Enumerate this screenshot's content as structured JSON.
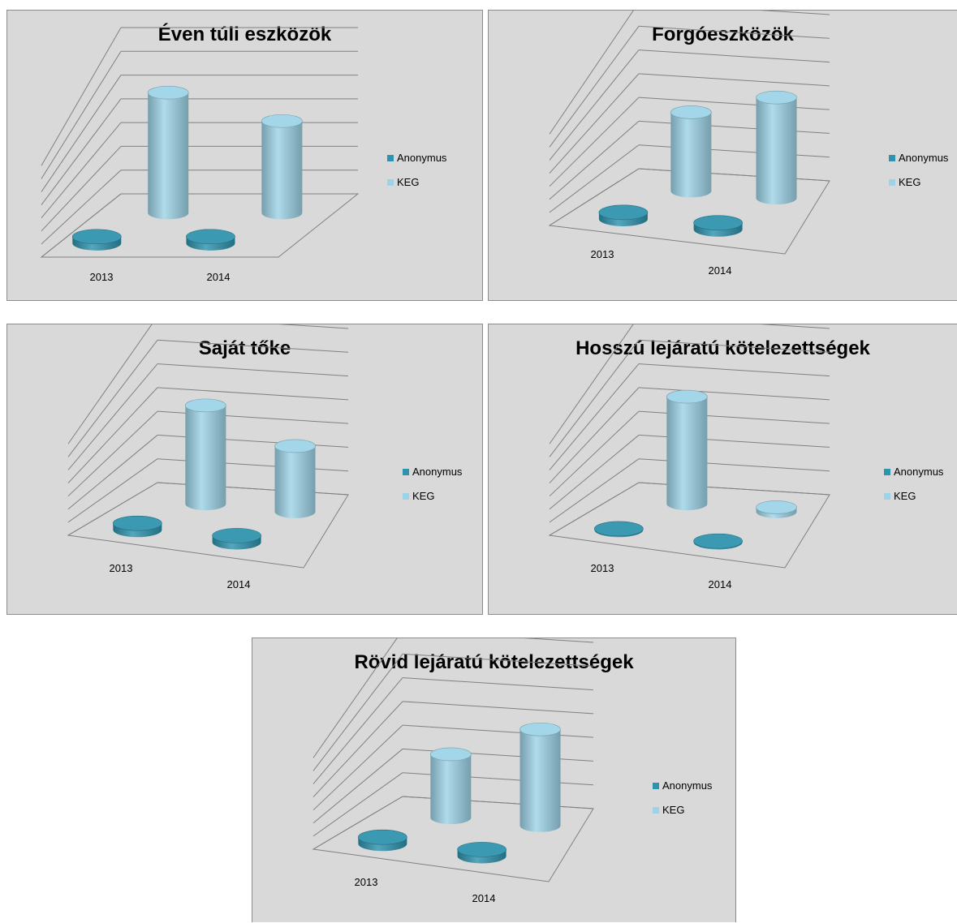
{
  "colors": {
    "anonymus": "#2f93ad",
    "keg": "#9dd3e6",
    "panel_bg": "#d9d9d9",
    "grid": "#808080"
  },
  "legend": [
    {
      "label": "Anonymus",
      "color": "#2f93ad"
    },
    {
      "label": "KEG",
      "color": "#9dd3e6"
    }
  ],
  "chart_data": [
    {
      "type": "bar",
      "title": "Éven túli eszközök",
      "categories": [
        "2013",
        "2014"
      ],
      "series": [
        {
          "name": "Anonymus",
          "values": [
            0.3,
            0.3
          ]
        },
        {
          "name": "KEG",
          "values": [
            5.5,
            4.2
          ]
        }
      ],
      "ylim": [
        0,
        7
      ],
      "grid": true,
      "legend_position": "right"
    },
    {
      "type": "bar",
      "title": "Forgóeszközök",
      "categories": [
        "2013",
        "2014"
      ],
      "series": [
        {
          "name": "Anonymus",
          "values": [
            0.3,
            0.3
          ]
        },
        {
          "name": "KEG",
          "values": [
            3.6,
            4.6
          ]
        }
      ],
      "ylim": [
        0,
        7
      ],
      "grid": true,
      "legend_position": "right"
    },
    {
      "type": "bar",
      "title": "Saját tőke",
      "categories": [
        "2013",
        "2014"
      ],
      "series": [
        {
          "name": "Anonymus",
          "values": [
            0.3,
            0.3
          ]
        },
        {
          "name": "KEG",
          "values": [
            4.5,
            3.0
          ]
        }
      ],
      "ylim": [
        0,
        7
      ],
      "grid": true,
      "legend_position": "right"
    },
    {
      "type": "bar",
      "title": "Hosszú lejáratú kötelezettségek",
      "categories": [
        "2013",
        "2014"
      ],
      "series": [
        {
          "name": "Anonymus",
          "values": [
            0.05,
            0.05
          ]
        },
        {
          "name": "KEG",
          "values": [
            4.9,
            0.2
          ]
        }
      ],
      "ylim": [
        0,
        7
      ],
      "grid": true,
      "legend_position": "right"
    },
    {
      "type": "bar",
      "title": "Rövid lejáratú kötelezettségek",
      "categories": [
        "2013",
        "2014"
      ],
      "series": [
        {
          "name": "Anonymus",
          "values": [
            0.3,
            0.3
          ]
        },
        {
          "name": "KEG",
          "values": [
            2.9,
            4.4
          ]
        }
      ],
      "ylim": [
        0,
        7
      ],
      "grid": true,
      "legend_position": "right"
    }
  ]
}
